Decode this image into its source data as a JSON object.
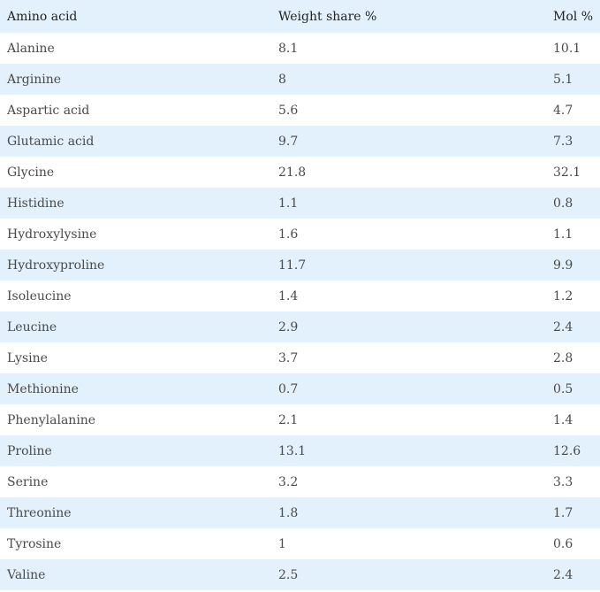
{
  "table": {
    "headers": [
      "Amino acid",
      "Weight share %",
      "Mol %"
    ],
    "rows": [
      [
        "Alanine",
        "8.1",
        "10.1"
      ],
      [
        "Arginine",
        "8",
        "5.1"
      ],
      [
        "Aspartic acid",
        "5.6",
        "4.7"
      ],
      [
        "Glutamic acid",
        "9.7",
        "7.3"
      ],
      [
        "Glycine",
        "21.8",
        "32.1"
      ],
      [
        "Histidine",
        "1.1",
        "0.8"
      ],
      [
        "Hydroxylysine",
        "1.6",
        "1.1"
      ],
      [
        "Hydroxyproline",
        "11.7",
        "9.9"
      ],
      [
        "Isoleucine",
        "1.4",
        "1.2"
      ],
      [
        "Leucine",
        "2.9",
        "2.4"
      ],
      [
        "Lysine",
        "3.7",
        "2.8"
      ],
      [
        "Methionine",
        "0.7",
        "0.5"
      ],
      [
        "Phenylalanine",
        "2.1",
        "1.4"
      ],
      [
        "Proline",
        "13.1",
        "12.6"
      ],
      [
        "Serine",
        "3.2",
        "3.3"
      ],
      [
        "Threonine",
        "1.8",
        "1.7"
      ],
      [
        "Tyrosine",
        "1",
        "0.6"
      ],
      [
        "Valine",
        "2.5",
        "2.4"
      ]
    ]
  },
  "colors": {
    "header_bg": "#e3f1fc",
    "stripe_bg": "#e3f1fc",
    "text": "#4a4a4a"
  }
}
